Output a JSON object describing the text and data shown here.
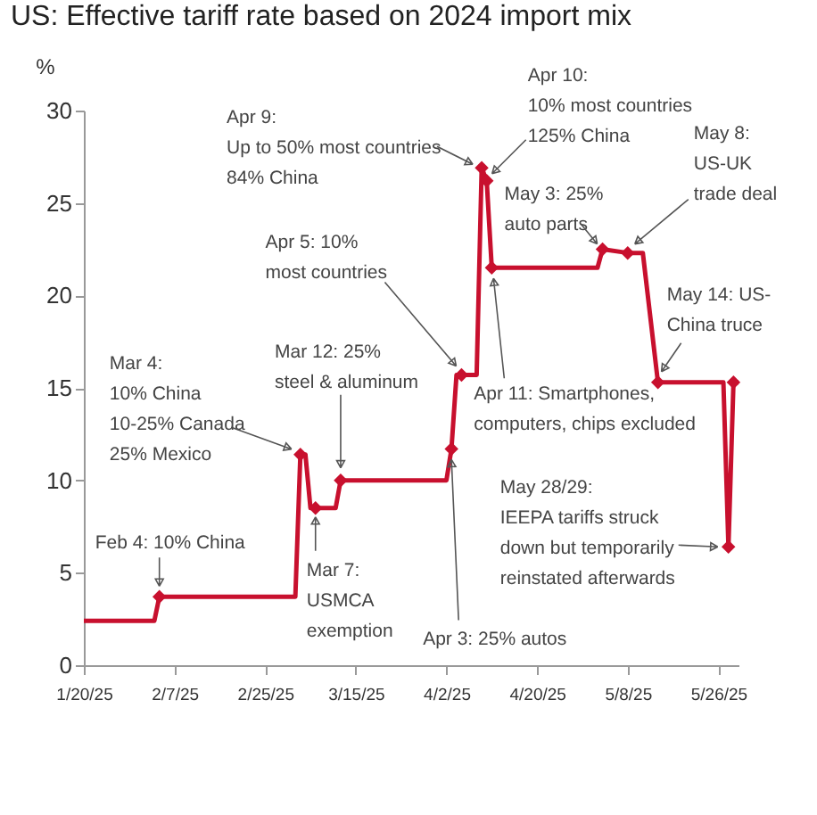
{
  "chart_data": {
    "type": "line",
    "title": "US: Effective tariff rate based on 2024 import mix",
    "ylabel": "%",
    "xlim": [
      "2025-01-20",
      "2025-05-30"
    ],
    "ylim": [
      0,
      30
    ],
    "yticks": [
      0,
      5,
      10,
      15,
      20,
      25,
      30
    ],
    "xticks": [
      {
        "value": "2025-01-20",
        "label": "1/20/25"
      },
      {
        "value": "2025-02-07",
        "label": "2/7/25"
      },
      {
        "value": "2025-02-25",
        "label": "2/25/25"
      },
      {
        "value": "2025-03-15",
        "label": "3/15/25"
      },
      {
        "value": "2025-04-02",
        "label": "4/2/25"
      },
      {
        "value": "2025-04-20",
        "label": "4/20/25"
      },
      {
        "value": "2025-05-08",
        "label": "5/8/25"
      },
      {
        "value": "2025-05-26",
        "label": "5/26/25"
      }
    ],
    "grid": false,
    "series": [
      {
        "type": "line",
        "color": "#c8102e",
        "marker": "none",
        "x": [
          "2025-01-20",
          "2025-02-03",
          "2025-02-04",
          "2025-03-03",
          "2025-03-04",
          "2025-03-05",
          "2025-03-06",
          "2025-03-07",
          "2025-03-11",
          "2025-03-12",
          "2025-04-02",
          "2025-04-03",
          "2025-04-04",
          "2025-04-05",
          "2025-04-08",
          "2025-04-09",
          "2025-04-10",
          "2025-04-11",
          "2025-05-02",
          "2025-05-03",
          "2025-05-08",
          "2025-05-11",
          "2025-05-14",
          "2025-05-27",
          "2025-05-28",
          "2025-05-29",
          "2025-05-30"
        ],
        "values": [
          2.4,
          2.4,
          3.7,
          3.7,
          11.4,
          11.4,
          8.5,
          8.5,
          8.5,
          10.0,
          10.0,
          11.7,
          15.7,
          15.7,
          15.7,
          26.9,
          26.2,
          21.5,
          21.5,
          22.5,
          22.3,
          22.3,
          15.3,
          15.3,
          6.4,
          15.3,
          15.3
        ]
      },
      {
        "type": "scatter",
        "color": "#c8102e",
        "marker": "diamond",
        "x": [
          "2025-02-04",
          "2025-03-04",
          "2025-03-07",
          "2025-03-12",
          "2025-04-03",
          "2025-04-05",
          "2025-04-09",
          "2025-04-10",
          "2025-04-11",
          "2025-05-03",
          "2025-05-08",
          "2025-05-14",
          "2025-05-28",
          "2025-05-29"
        ],
        "values": [
          3.7,
          11.4,
          8.5,
          10.0,
          11.7,
          15.7,
          26.9,
          26.2,
          21.5,
          22.5,
          22.3,
          15.3,
          6.4,
          15.3
        ]
      }
    ],
    "annotations": [
      {
        "text": "Feb 4: 10% China",
        "x": "2025-02-04",
        "y": 3.7
      },
      {
        "text": "Mar 4:\n10% China\n10-25% Canada\n25% Mexico",
        "x": "2025-03-04",
        "y": 11.4
      },
      {
        "text": "Mar 7:\nUSMCA\nexemption",
        "x": "2025-03-07",
        "y": 8.5
      },
      {
        "text": "Mar 12: 25%\nsteel & aluminum",
        "x": "2025-03-12",
        "y": 10.0
      },
      {
        "text": "Apr 3: 25% autos",
        "x": "2025-04-03",
        "y": 11.7
      },
      {
        "text": "Apr 5: 10%\nmost countries",
        "x": "2025-04-05",
        "y": 15.7
      },
      {
        "text": "Apr 9:\nUp to 50% most countries\n84% China",
        "x": "2025-04-09",
        "y": 26.9
      },
      {
        "text": "Apr 10:\n10% most countries\n125% China",
        "x": "2025-04-10",
        "y": 26.2
      },
      {
        "text": "Apr 11: Smartphones,\ncomputers, chips excluded",
        "x": "2025-04-11",
        "y": 21.5
      },
      {
        "text": "May 3: 25%\nauto parts",
        "x": "2025-05-03",
        "y": 22.5
      },
      {
        "text": "May 8:\nUS-UK\ntrade deal",
        "x": "2025-05-08",
        "y": 22.3
      },
      {
        "text": "May 14: US-\nChina truce",
        "x": "2025-05-14",
        "y": 15.3
      },
      {
        "text": "May 28/29:\nIEEPA tariffs struck\ndown but temporarily\nreinstated afterwards",
        "x": "2025-05-28",
        "y": 6.4
      }
    ]
  }
}
